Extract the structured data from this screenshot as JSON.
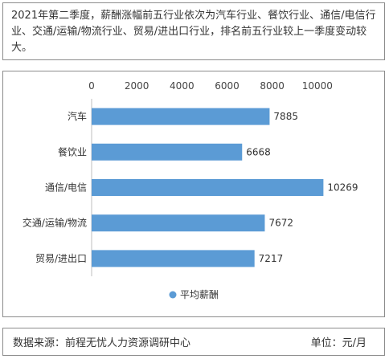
{
  "intro_text": "2021年第二季度，薪酬涨幅前五行业依次为汽车行业、餐饮行业、通信/电信行业、交通/运输/物流行业、贸易/进出口行业，排名前五行业较上一季度变动较大。",
  "footer": {
    "source": "数据来源：前程无忧人力资源调研中心",
    "unit": "单位：元/月"
  },
  "colors": {
    "bar": "#5b9bd5",
    "border": "#8c8c8c"
  },
  "chart_data": {
    "type": "bar",
    "orientation": "horizontal",
    "categories": [
      "汽车",
      "餐饮业",
      "通信/电信",
      "交通/运输/物流",
      "贸易/进出口"
    ],
    "series": [
      {
        "name": "平均薪酬",
        "values": [
          7885,
          6668,
          10269,
          7672,
          7217
        ]
      }
    ],
    "xticks": [
      0,
      2000,
      4000,
      6000,
      8000,
      10000
    ],
    "xlim": [
      0,
      12000
    ],
    "axis_position": "top",
    "grid": false,
    "legend": "bottom-center"
  }
}
